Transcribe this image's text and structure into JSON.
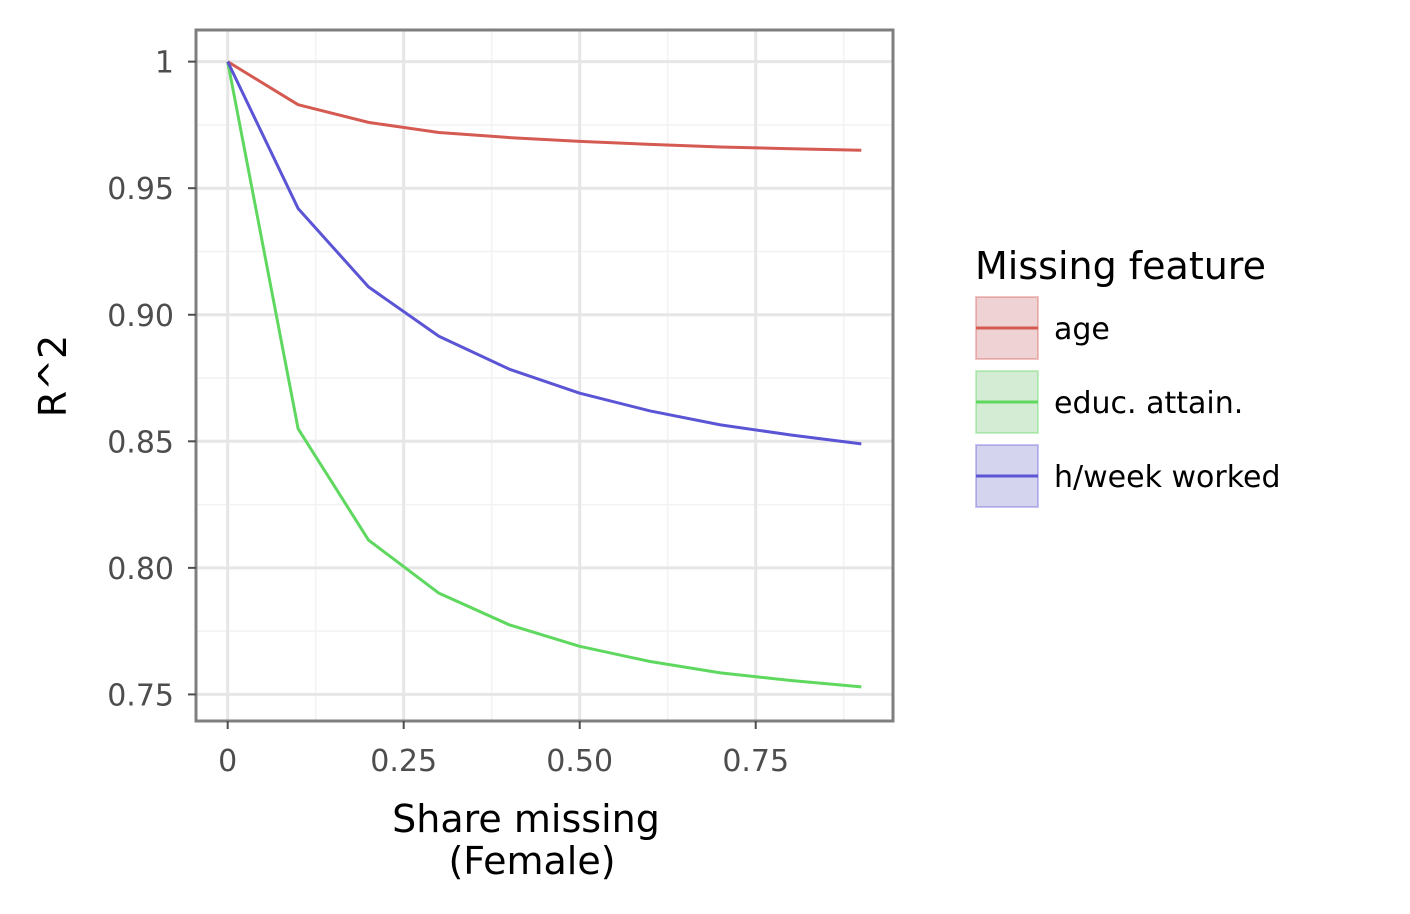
{
  "chart_data": {
    "type": "line",
    "xlabel": [
      "Share missing",
      "(Female)"
    ],
    "ylabel": "R^2",
    "xlim": [
      -0.045,
      0.945
    ],
    "ylim": [
      0.7395,
      1.0125
    ],
    "x_ticks": [
      0,
      0.25,
      0.5,
      0.75
    ],
    "x_tick_labels": [
      "0",
      "0.25",
      "0.50",
      "0.75"
    ],
    "y_ticks": [
      0.75,
      0.8,
      0.85,
      0.9,
      0.95,
      1.0
    ],
    "y_tick_labels": [
      "0.75",
      "0.80",
      "0.85",
      "0.90",
      "0.95",
      "1"
    ],
    "grid": true,
    "legend": {
      "title": "Missing feature",
      "position": "right"
    },
    "x": [
      0,
      0.1,
      0.2,
      0.3,
      0.4,
      0.5,
      0.6,
      0.7,
      0.8,
      0.9
    ],
    "series": [
      {
        "name": "age",
        "color": "#d45a52",
        "fill": "#efd3d4",
        "values": [
          1.0,
          0.983,
          0.976,
          0.972,
          0.97,
          0.9685,
          0.9673,
          0.9663,
          0.9656,
          0.965
        ]
      },
      {
        "name": "educ. attain.",
        "color": "#5fd85f",
        "fill": "#d4ecd4",
        "values": [
          1.0,
          0.855,
          0.811,
          0.79,
          0.7775,
          0.769,
          0.763,
          0.7585,
          0.7555,
          0.753
        ]
      },
      {
        "name": "h/week worked",
        "color": "#5b55d6",
        "fill": "#d4d4ee",
        "values": [
          1.0,
          0.942,
          0.911,
          0.8915,
          0.8785,
          0.869,
          0.862,
          0.8565,
          0.8525,
          0.849
        ]
      }
    ]
  }
}
